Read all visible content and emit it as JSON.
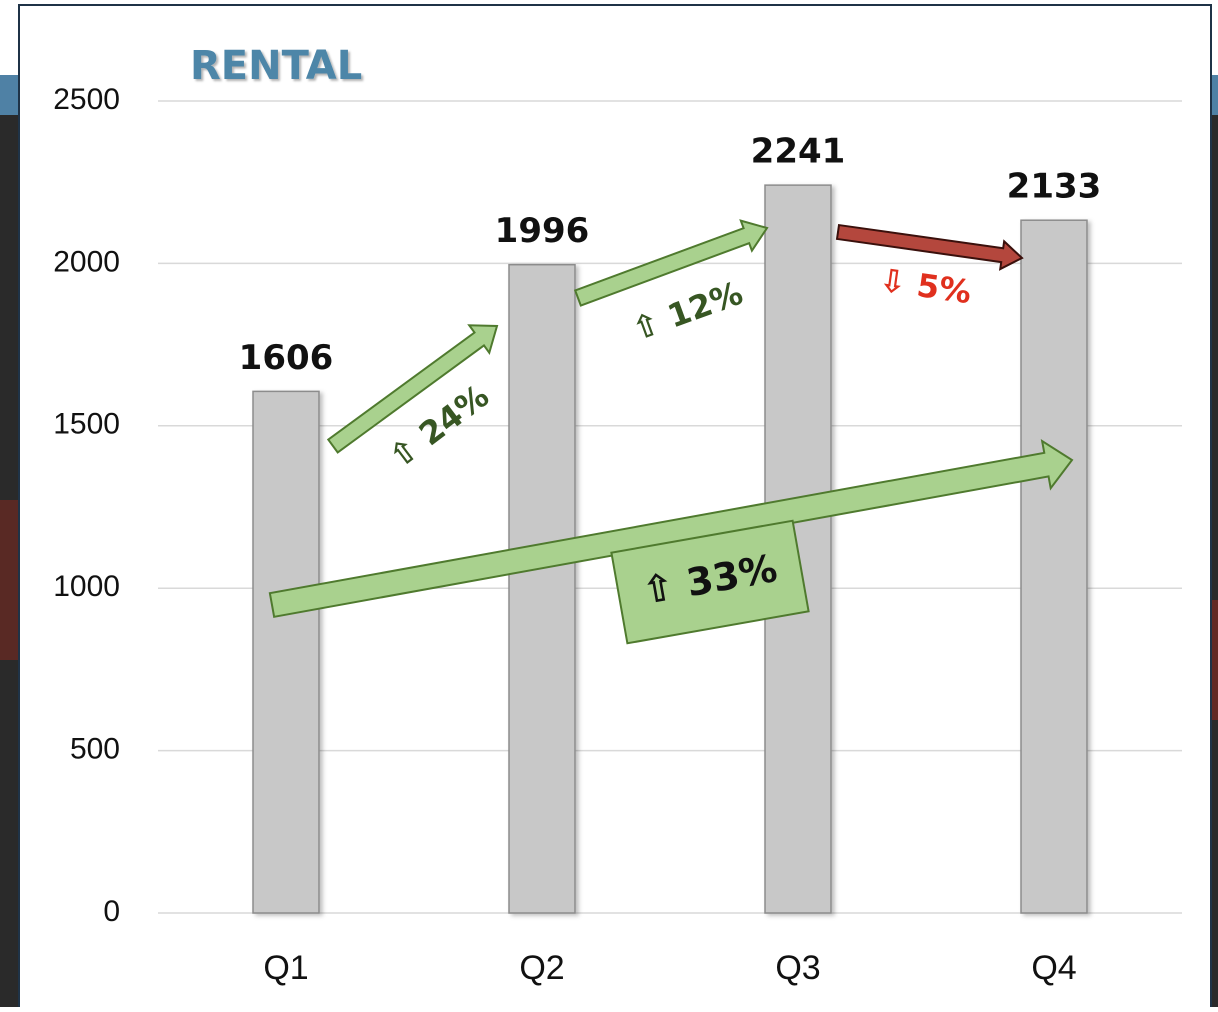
{
  "chart_data": {
    "type": "bar",
    "title": "RENTAL",
    "categories": [
      "Q1",
      "Q2",
      "Q3",
      "Q4"
    ],
    "values": [
      1606,
      1996,
      2241,
      2133
    ],
    "color": "#c8c8c8",
    "ylim": [
      0,
      2500
    ],
    "yticks": [
      0,
      500,
      1000,
      1500,
      2000,
      2500
    ],
    "grid": true,
    "annotations": [
      {
        "text": "⇧ 24%",
        "color": "#375623"
      },
      {
        "text": "⇧ 12%",
        "color": "#375623"
      },
      {
        "text": "⇩ 5%",
        "color": "#e0301e"
      },
      {
        "text": "⇧ 33%",
        "color": "#111111"
      }
    ]
  }
}
